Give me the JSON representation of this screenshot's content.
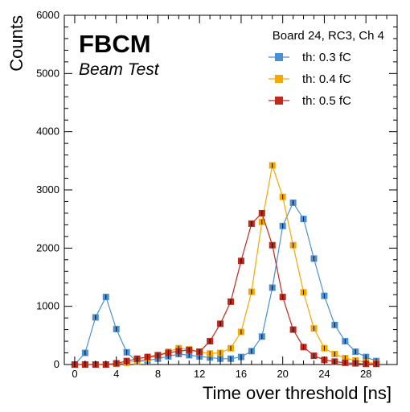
{
  "chart_data": {
    "type": "line",
    "experiment": "FBCM",
    "experiment_sub": "Beam Test",
    "legend_title": "Board 24, RC3, Ch 4",
    "xlabel": "Time over threshold [ns]",
    "ylabel": "Counts",
    "xlim": [
      -1,
      31
    ],
    "ylim": [
      0,
      6000
    ],
    "xticks": [
      0,
      4,
      8,
      12,
      16,
      20,
      24,
      28
    ],
    "yticks": [
      0,
      1000,
      2000,
      3000,
      4000,
      5000,
      6000
    ],
    "legend_position": "top-right",
    "grid": false,
    "x": [
      0,
      1,
      2,
      3,
      4,
      5,
      6,
      7,
      8,
      9,
      10,
      11,
      12,
      13,
      14,
      15,
      16,
      17,
      18,
      19,
      20,
      21,
      22,
      23,
      24,
      25,
      26,
      27,
      28,
      29
    ],
    "series": [
      {
        "name": "th: 0.3 fC",
        "color": "#4a90d4",
        "values": [
          0,
          200,
          810,
          1160,
          610,
          210,
          50,
          70,
          100,
          140,
          180,
          160,
          140,
          120,
          100,
          100,
          130,
          230,
          480,
          1320,
          2380,
          2780,
          2500,
          1820,
          1180,
          680,
          400,
          220,
          130,
          60
        ]
      },
      {
        "name": "th: 0.4 fC",
        "color": "#f5a800",
        "values": [
          0,
          0,
          0,
          0,
          10,
          30,
          60,
          100,
          160,
          220,
          280,
          260,
          220,
          190,
          200,
          280,
          560,
          1250,
          2450,
          3420,
          2880,
          2050,
          1240,
          620,
          280,
          180,
          110,
          70,
          40,
          20
        ]
      },
      {
        "name": "th: 0.5 fC",
        "color": "#c0291c",
        "values": [
          0,
          0,
          0,
          0,
          20,
          60,
          100,
          130,
          160,
          200,
          230,
          250,
          220,
          400,
          700,
          1080,
          1780,
          2420,
          2600,
          2050,
          1160,
          600,
          300,
          150,
          80,
          50,
          30,
          20,
          10,
          10
        ]
      }
    ]
  }
}
